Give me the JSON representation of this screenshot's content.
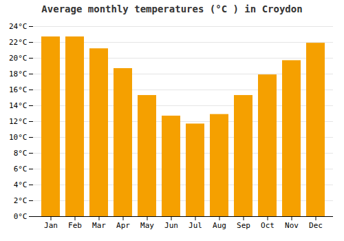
{
  "chart_data": {
    "type": "bar",
    "title": "Average monthly temperatures (°C ) in Croydon",
    "categories": [
      "Jan",
      "Feb",
      "Mar",
      "Apr",
      "May",
      "Jun",
      "Jul",
      "Aug",
      "Sep",
      "Oct",
      "Nov",
      "Dec"
    ],
    "values": [
      22.7,
      22.7,
      21.2,
      18.7,
      15.3,
      12.7,
      11.7,
      12.9,
      15.3,
      17.9,
      19.7,
      21.9
    ],
    "color": "#F5A000",
    "ylim": [
      0,
      24
    ],
    "yticks": [
      {
        "value": 0,
        "label": "0°C"
      },
      {
        "value": 2,
        "label": "2°C"
      },
      {
        "value": 4,
        "label": "4°C"
      },
      {
        "value": 6,
        "label": "6°C"
      },
      {
        "value": 8,
        "label": "8°C"
      },
      {
        "value": 10,
        "label": "10°C"
      },
      {
        "value": 12,
        "label": "12°C"
      },
      {
        "value": 14,
        "label": "14°C"
      },
      {
        "value": 16,
        "label": "16°C"
      },
      {
        "value": 18,
        "label": "18°C"
      },
      {
        "value": 20,
        "label": "20°C"
      },
      {
        "value": 22,
        "label": "22°C"
      },
      {
        "value": 24,
        "label": "24°C"
      }
    ],
    "grid": true
  }
}
